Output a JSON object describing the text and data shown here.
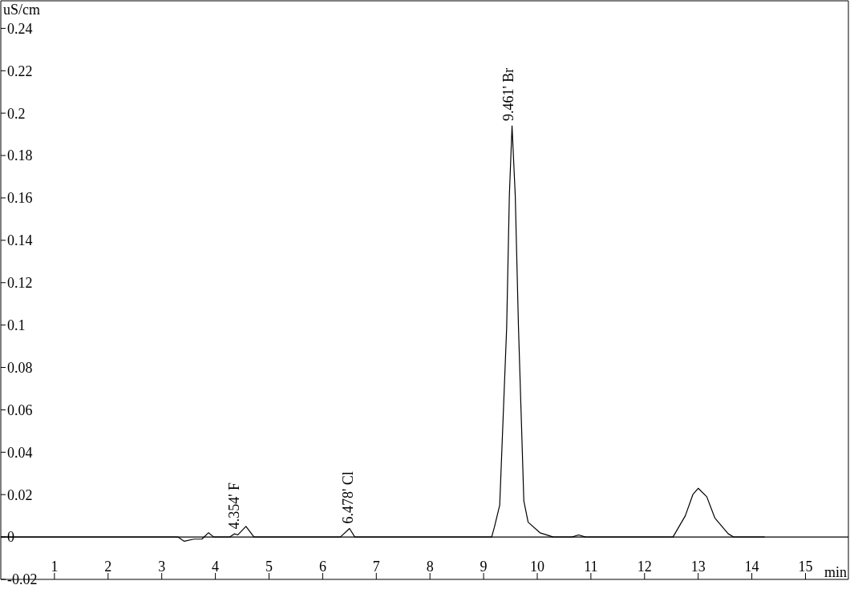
{
  "chart_data": {
    "type": "line",
    "xlabel": "min",
    "ylabel": "uS/cm",
    "x": [
      0,
      3.3,
      3.42,
      3.6,
      3.75,
      3.87,
      3.97,
      4.27,
      4.354,
      4.42,
      4.57,
      4.72,
      6.33,
      6.5,
      6.6,
      9.15,
      9.2,
      9.3,
      9.43,
      9.48,
      9.53,
      9.59,
      9.65,
      9.75,
      9.83,
      10.05,
      10.3,
      10.65,
      10.77,
      10.9,
      12.53,
      12.76,
      12.9,
      13.0,
      13.16,
      13.31,
      13.56,
      13.66,
      14.24
    ],
    "series": [
      {
        "color": "#000000",
        "values": [
          0,
          0,
          -0.002,
          -0.001,
          -0.001,
          0.002,
          0,
          0,
          0.0015,
          0.001,
          0.005,
          0,
          0,
          0.004,
          0,
          0,
          0.0045,
          0.015,
          0.099,
          0.161,
          0.194,
          0.161,
          0.099,
          0.017,
          0.007,
          0.002,
          0,
          0,
          0.001,
          0,
          0,
          0.01,
          0.02,
          0.023,
          0.019,
          0.009,
          0.0015,
          0,
          0
        ]
      }
    ],
    "xlim": [
      0,
      15.8
    ],
    "xticks": [
      1,
      2,
      3,
      4,
      5,
      6,
      7,
      8,
      9,
      10,
      11,
      12,
      13,
      14,
      15
    ],
    "ylim": [
      -0.02,
      0.253
    ],
    "yticks": [
      -0.02,
      0,
      0.02,
      0.04,
      0.06,
      0.08,
      0.1,
      0.12,
      0.14,
      0.16,
      0.18,
      0.2,
      0.22,
      0.24
    ],
    "ref_lines": [
      {
        "axis": "y",
        "value": 0
      }
    ],
    "annotations": [
      {
        "text": "4.354'  F",
        "x": 4.354,
        "y": 0.0015
      },
      {
        "text": "6.478'  Cl",
        "x": 6.478,
        "y": 0.004
      },
      {
        "text": "9.461'  Br",
        "x": 9.461,
        "y": 0.194
      }
    ],
    "marker": "none",
    "line_style": "solid"
  }
}
